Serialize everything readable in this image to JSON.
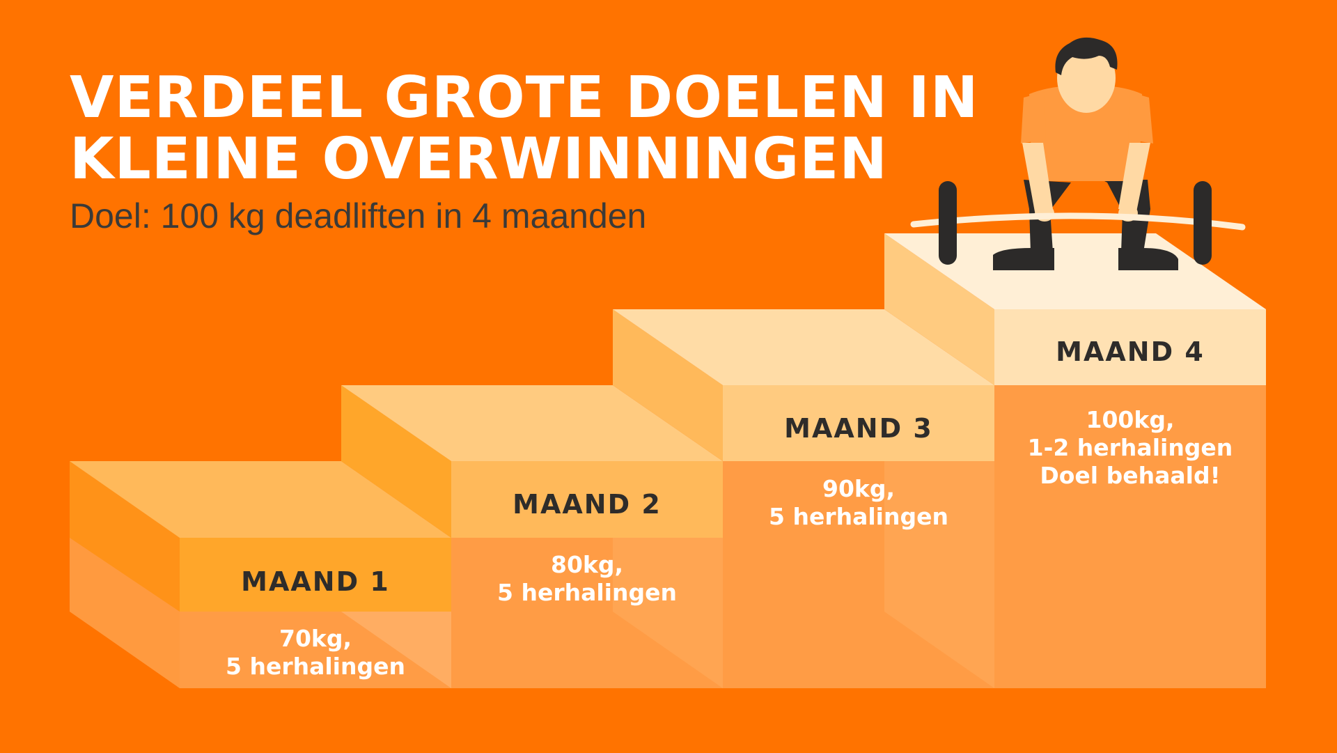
{
  "header": {
    "title_line_1": "VERDEEL GROTE DOELEN IN",
    "title_line_2": "KLEINE OVERWINNINGEN",
    "subtitle": "Doel: 100 kg deadliften in 4 maanden"
  },
  "steps": [
    {
      "label": "MAAND 1",
      "desc_1": "70kg,",
      "desc_2": "5 herhalingen"
    },
    {
      "label": "MAAND 2",
      "desc_1": "80kg,",
      "desc_2": "5 herhalingen"
    },
    {
      "label": "MAAND 3",
      "desc_1": "90kg,",
      "desc_2": "5 herhalingen"
    },
    {
      "label": "MAAND 4",
      "desc_1": "100kg,",
      "desc_2": "1-2 herhalingen",
      "desc_3": "Doel behaald!"
    }
  ],
  "colors": {
    "background": "#ff7300",
    "title": "#ffffff",
    "subtitle": "#3b3a38",
    "label_text": "#2e2c2a"
  },
  "icons": {
    "lifter": "deadlift-person-icon"
  }
}
